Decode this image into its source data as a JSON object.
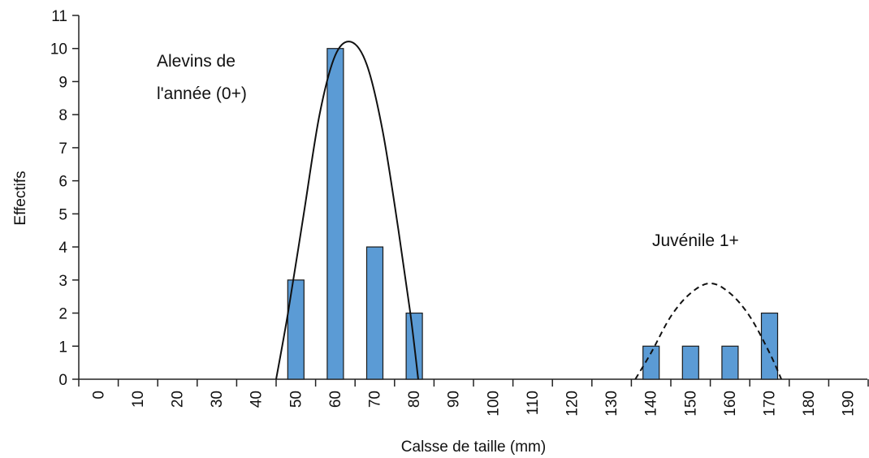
{
  "chart_data": {
    "type": "bar",
    "xlabel": "Calsse de taille (mm)",
    "ylabel": "Effectifs",
    "categories": [
      "0",
      "10",
      "20",
      "30",
      "40",
      "50",
      "60",
      "70",
      "80",
      "90",
      "100",
      "110",
      "120",
      "130",
      "140",
      "150",
      "160",
      "170",
      "180",
      "190"
    ],
    "values": [
      0,
      0,
      0,
      0,
      0,
      3,
      10,
      4,
      2,
      0,
      0,
      0,
      0,
      0,
      1,
      1,
      1,
      2,
      0,
      0
    ],
    "ylim": [
      0,
      11
    ],
    "yticks": [
      "0",
      "1",
      "2",
      "3",
      "4",
      "5",
      "6",
      "7",
      "8",
      "9",
      "10",
      "11"
    ],
    "grid": false,
    "bar_color": "#5b9bd5",
    "annotations": [
      {
        "lines": [
          "Alevins de",
          "l'année (0+)"
        ]
      },
      {
        "lines": [
          "Juvénile 1+"
        ]
      }
    ],
    "curves": [
      {
        "style": "solid",
        "points": [
          [
            45,
            0
          ],
          [
            48,
            2
          ],
          [
            52,
            5
          ],
          [
            56,
            8
          ],
          [
            60,
            9.8
          ],
          [
            64,
            10.2
          ],
          [
            68,
            9.5
          ],
          [
            72,
            7.5
          ],
          [
            76,
            4.5
          ],
          [
            79,
            2
          ],
          [
            81,
            0
          ]
        ]
      },
      {
        "style": "dashed",
        "points": [
          [
            136,
            0
          ],
          [
            140,
            0.8
          ],
          [
            145,
            1.9
          ],
          [
            150,
            2.6
          ],
          [
            155,
            2.9
          ],
          [
            160,
            2.6
          ],
          [
            165,
            1.9
          ],
          [
            170,
            0.8
          ],
          [
            173,
            0
          ]
        ]
      }
    ]
  }
}
